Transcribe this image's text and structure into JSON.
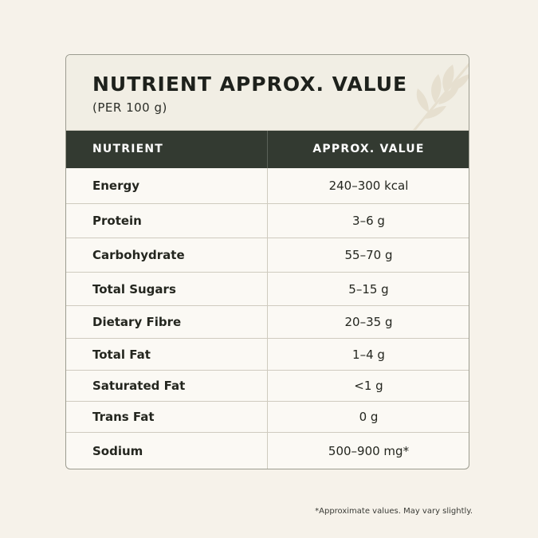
{
  "card": {
    "title": "NUTRIENT APPROX. VALUE",
    "subtitle": "(PER 100 g)"
  },
  "table": {
    "columns": [
      "NUTRIENT",
      "APPROX. VALUE"
    ],
    "rows": [
      {
        "nutrient": "Energy",
        "value": "240–300 kcal"
      },
      {
        "nutrient": "Protein",
        "value": "3–6 g"
      },
      {
        "nutrient": "Carbohydrate",
        "value": "55–70 g"
      },
      {
        "nutrient": "Total Sugars",
        "value": "5–15 g"
      },
      {
        "nutrient": "Dietary Fibre",
        "value": "20–35 g"
      },
      {
        "nutrient": "Total Fat",
        "value": "1–4 g"
      },
      {
        "nutrient": "Saturated Fat",
        "value": "<1 g"
      },
      {
        "nutrient": "Trans Fat",
        "value": "0 g"
      },
      {
        "nutrient": "Sodium",
        "value": "500–900 mg*"
      }
    ]
  },
  "footnote": "*Approximate values. May vary slightly.",
  "colors": {
    "background": "#f6f2ea",
    "header_band": "#333a31",
    "card_border": "#9c9c90"
  },
  "icons": {
    "decoration": "wheat-leaf-icon"
  }
}
